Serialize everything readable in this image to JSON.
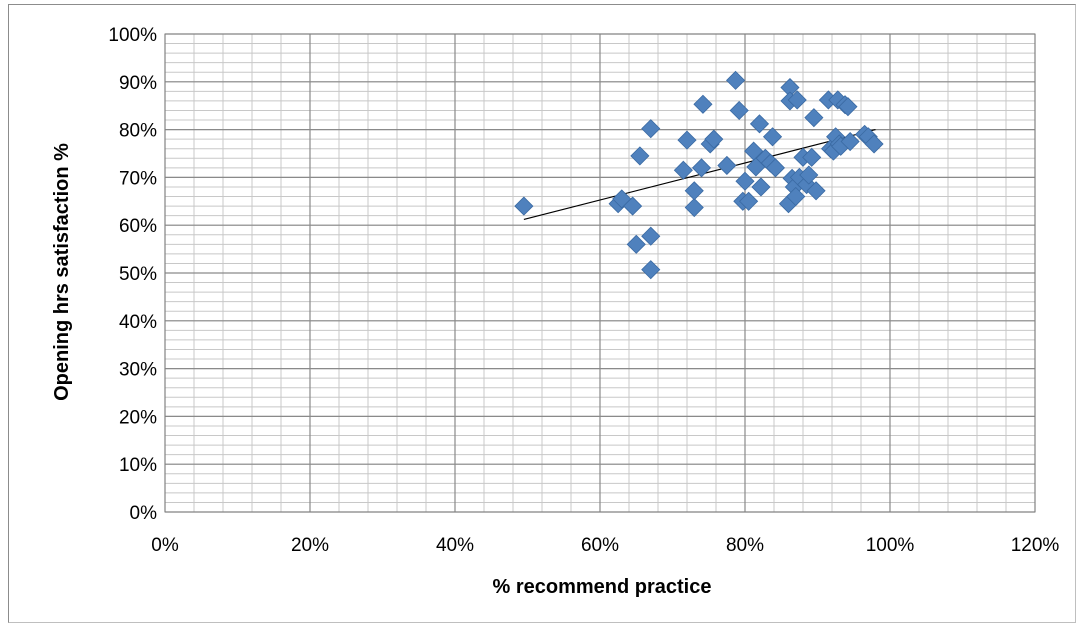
{
  "chart_data": {
    "type": "scatter",
    "title": "",
    "xlabel": "% recommend practice",
    "ylabel": "Opening hrs satisfaction  %",
    "xlim": [
      0,
      1.2
    ],
    "ylim": [
      0,
      1.0
    ],
    "x_ticks": [
      "0%",
      "20%",
      "40%",
      "60%",
      "80%",
      "100%",
      "120%"
    ],
    "y_ticks": [
      "0%",
      "10%",
      "20%",
      "30%",
      "40%",
      "50%",
      "60%",
      "70%",
      "80%",
      "90%",
      "100%"
    ],
    "grid": true,
    "legend": "none",
    "series": [
      {
        "marker": "diamond",
        "color": "#4f81bd",
        "points": [
          [
            0.495,
            0.64
          ],
          [
            0.625,
            0.645
          ],
          [
            0.63,
            0.655
          ],
          [
            0.645,
            0.64
          ],
          [
            0.65,
            0.56
          ],
          [
            0.655,
            0.745
          ],
          [
            0.67,
            0.802
          ],
          [
            0.67,
            0.577
          ],
          [
            0.67,
            0.507
          ],
          [
            0.715,
            0.715
          ],
          [
            0.72,
            0.778
          ],
          [
            0.73,
            0.637
          ],
          [
            0.73,
            0.672
          ],
          [
            0.74,
            0.72
          ],
          [
            0.742,
            0.853
          ],
          [
            0.752,
            0.77
          ],
          [
            0.757,
            0.78
          ],
          [
            0.775,
            0.725
          ],
          [
            0.787,
            0.903
          ],
          [
            0.792,
            0.84
          ],
          [
            0.797,
            0.65
          ],
          [
            0.8,
            0.692
          ],
          [
            0.805,
            0.65
          ],
          [
            0.812,
            0.755
          ],
          [
            0.815,
            0.722
          ],
          [
            0.82,
            0.812
          ],
          [
            0.822,
            0.68
          ],
          [
            0.828,
            0.74
          ],
          [
            0.835,
            0.73
          ],
          [
            0.838,
            0.785
          ],
          [
            0.842,
            0.72
          ],
          [
            0.86,
            0.645
          ],
          [
            0.862,
            0.888
          ],
          [
            0.862,
            0.86
          ],
          [
            0.865,
            0.698
          ],
          [
            0.868,
            0.68
          ],
          [
            0.87,
            0.66
          ],
          [
            0.872,
            0.862
          ],
          [
            0.875,
            0.7
          ],
          [
            0.88,
            0.742
          ],
          [
            0.885,
            0.685
          ],
          [
            0.888,
            0.705
          ],
          [
            0.892,
            0.742
          ],
          [
            0.895,
            0.825
          ],
          [
            0.898,
            0.672
          ],
          [
            0.915,
            0.862
          ],
          [
            0.918,
            0.76
          ],
          [
            0.922,
            0.755
          ],
          [
            0.925,
            0.785
          ],
          [
            0.928,
            0.862
          ],
          [
            0.93,
            0.77
          ],
          [
            0.932,
            0.765
          ],
          [
            0.938,
            0.852
          ],
          [
            0.942,
            0.848
          ],
          [
            0.945,
            0.775
          ],
          [
            0.965,
            0.79
          ],
          [
            0.97,
            0.785
          ],
          [
            0.978,
            0.77
          ]
        ]
      }
    ],
    "trendline": {
      "type": "linear",
      "from": [
        0.495,
        0.612
      ],
      "to": [
        0.98,
        0.8
      ],
      "color": "#000000"
    }
  }
}
